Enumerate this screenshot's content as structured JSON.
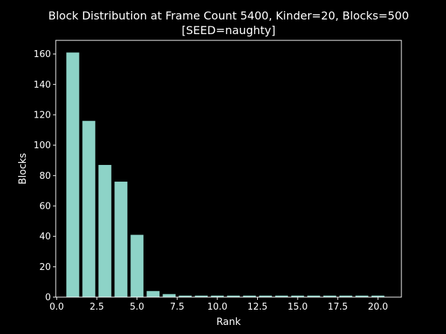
{
  "colors": {
    "background": "#000000",
    "foreground": "#ffffff",
    "bar": "#8dd3c7"
  },
  "chart_data": {
    "type": "bar",
    "title": "Block Distribution at Frame Count 5400, Kinder=20, Blocks=500",
    "subtitle": "[SEED=naughty]",
    "xlabel": "Rank",
    "ylabel": "Blocks",
    "grid": false,
    "x": [
      1,
      2,
      3,
      4,
      5,
      6,
      7,
      8,
      9,
      10,
      11,
      12,
      13,
      14,
      15,
      16,
      17,
      18,
      19,
      20
    ],
    "values": [
      161,
      116,
      87,
      76,
      41,
      4,
      2,
      1,
      1,
      1,
      1,
      1,
      1,
      1,
      1,
      1,
      1,
      1,
      1,
      1
    ],
    "xlim": [
      -0.06,
      21.46
    ],
    "ylim": [
      0,
      169
    ],
    "xticks": [
      0.0,
      2.5,
      5.0,
      7.5,
      10.0,
      12.5,
      15.0,
      17.5,
      20.0
    ],
    "xtick_labels": [
      "0.0",
      "2.5",
      "5.0",
      "7.5",
      "10.0",
      "12.5",
      "15.0",
      "17.5",
      "20.0"
    ],
    "yticks": [
      0,
      20,
      40,
      60,
      80,
      100,
      120,
      140,
      160
    ],
    "ytick_labels": [
      "0",
      "20",
      "40",
      "60",
      "80",
      "100",
      "120",
      "140",
      "160"
    ]
  }
}
